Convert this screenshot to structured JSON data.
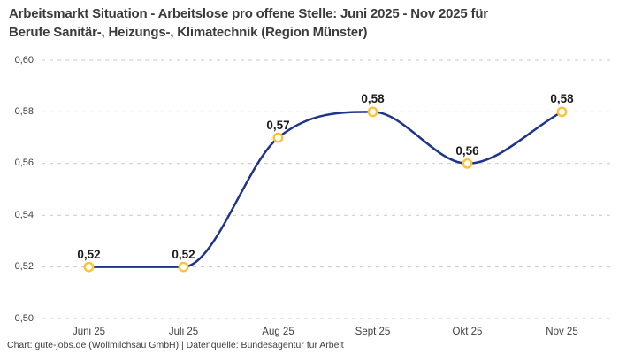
{
  "header": {
    "title_line1": "Arbeitsmarkt Situation - Arbeitslose pro offene Stelle: Juni 2025 - Nov 2025 für",
    "title_line2": "Berufe Sanitär-, Heizungs-, Klimatechnik (Region Münster)"
  },
  "footer": {
    "credit": "Chart: gute-jobs.de (Wollmilchsau GmbH) | Datenquelle: Bundesagentur für Arbeit"
  },
  "colors": {
    "line": "#20348C",
    "marker_ring": "#FFC233",
    "marker_fill": "#FFFFFF",
    "gridline": "#C9C9C9",
    "title_text": "#3B3B3B",
    "tick_text": "#3F3F3F",
    "data_label_text": "#1B1B1B"
  },
  "chart_data": {
    "type": "line",
    "title": "Arbeitsmarkt Situation - Arbeitslose pro offene Stelle: Juni 2025 - Nov 2025 für Berufe Sanitär-, Heizungs-, Klimatechnik (Region Münster)",
    "categories": [
      "Juni 25",
      "Juli 25",
      "Aug 25",
      "Sept 25",
      "Okt 25",
      "Nov 25"
    ],
    "values": [
      0.52,
      0.52,
      0.57,
      0.58,
      0.56,
      0.58
    ],
    "value_labels": [
      "0,52",
      "0,52",
      "0,57",
      "0,58",
      "0,56",
      "0,58"
    ],
    "yticks": [
      0.5,
      0.52,
      0.54,
      0.56,
      0.58,
      0.6
    ],
    "ytick_labels": [
      "0,50",
      "0,52",
      "0,54",
      "0,56",
      "0,58",
      "0,60"
    ],
    "ylim": [
      0.5,
      0.6
    ],
    "xlabel": "",
    "ylabel": "",
    "legend": "none",
    "grid": "horizontal-dashed",
    "marker": "open-circle",
    "curve": "smooth-monotone"
  }
}
